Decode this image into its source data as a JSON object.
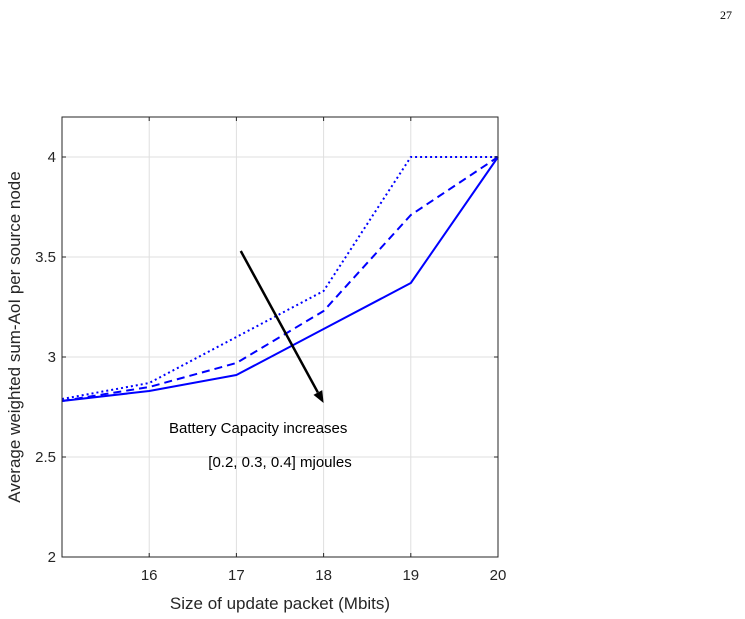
{
  "page_number": "27",
  "chart_data": {
    "type": "line",
    "title": "",
    "xlabel": "Size of update packet (Mbits)",
    "ylabel": "Average weighted sum-AoI per source node",
    "xlim": [
      15,
      20
    ],
    "ylim": [
      2,
      4.2
    ],
    "xticks": [
      16,
      17,
      18,
      19,
      20
    ],
    "yticks": [
      2,
      2.5,
      3,
      3.5,
      4
    ],
    "xtick_labels": [
      "16",
      "17",
      "18",
      "19",
      "20"
    ],
    "ytick_labels": [
      "2",
      "2.5",
      "3",
      "3.5",
      "4"
    ],
    "grid": true,
    "x": [
      15,
      16,
      17,
      18,
      19,
      20
    ],
    "series": [
      {
        "style": "dotted",
        "color": "#0000ff",
        "values": [
          2.79,
          2.87,
          3.1,
          3.33,
          4.0,
          4.0
        ]
      },
      {
        "style": "dashed",
        "color": "#0000ff",
        "values": [
          2.78,
          2.85,
          2.97,
          3.23,
          3.71,
          4.0
        ]
      },
      {
        "style": "solid",
        "color": "#0000ff",
        "values": [
          2.78,
          2.83,
          2.91,
          3.14,
          3.37,
          4.0
        ]
      }
    ],
    "annotations": [
      {
        "text": "Battery Capacity increases",
        "x": 17.25,
        "y": 2.62
      },
      {
        "text": "[0.2, 0.3, 0.4] mjoules",
        "x": 17.5,
        "y": 2.45
      }
    ],
    "arrow": {
      "from": [
        17.05,
        3.53
      ],
      "to": [
        18.0,
        2.77
      ],
      "color": "#000000"
    }
  }
}
